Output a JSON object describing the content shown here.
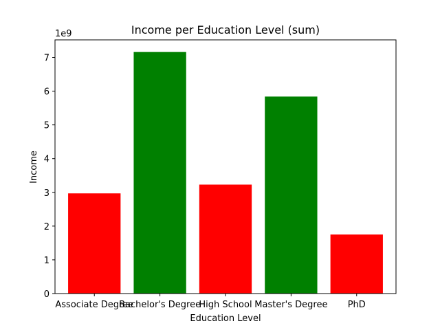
{
  "chart_data": {
    "type": "bar",
    "title": "Income per Education Level (sum)",
    "xlabel": "Education Level",
    "ylabel": "Income",
    "y_offset_label": "1e9",
    "categories": [
      "Associate Degree",
      "Bachelor's Degree",
      "High School",
      "Master's Degree",
      "PhD"
    ],
    "values": [
      2.97,
      7.16,
      3.23,
      5.84,
      1.75
    ],
    "value_scale": 1000000000,
    "bar_colors": [
      "#ff0000",
      "#008000",
      "#ff0000",
      "#008000",
      "#ff0000"
    ],
    "ylim": [
      0,
      7.52
    ],
    "yticks": [
      0,
      1,
      2,
      3,
      4,
      5,
      6,
      7
    ],
    "grid": false,
    "legend": "none"
  }
}
